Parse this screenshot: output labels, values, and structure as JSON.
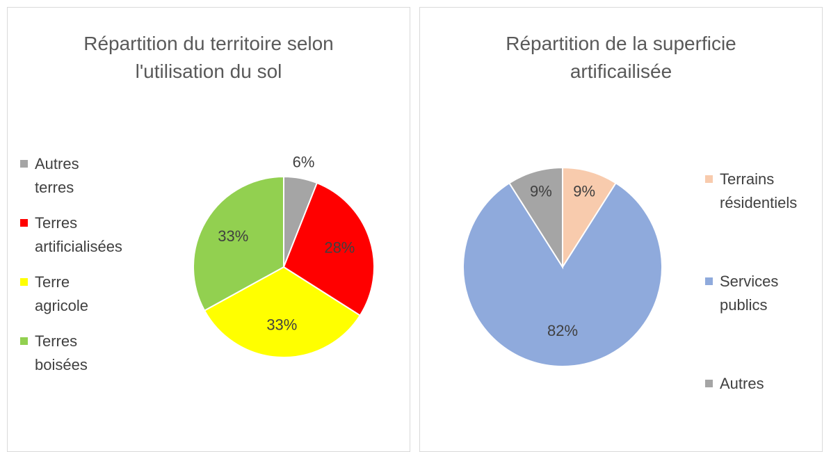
{
  "chart_data": [
    {
      "type": "pie",
      "title": "Répartition du territoire selon l'utilisation du sol",
      "categories": [
        "Autres terres",
        "Terres artificialisées",
        "Terre agricole",
        "Terres boisées"
      ],
      "values": [
        6,
        28,
        33,
        33
      ],
      "value_labels": [
        "6%",
        "28%",
        "33%",
        "33%"
      ],
      "colors": [
        "#a5a5a5",
        "#ff0000",
        "#ffff00",
        "#92d050"
      ],
      "legend": "left"
    },
    {
      "type": "pie",
      "title": "Répartition de la superficie artificailisée",
      "categories": [
        "Terrains résidentiels",
        "Services publics",
        "Autres"
      ],
      "values": [
        9,
        82,
        9
      ],
      "value_labels": [
        "9%",
        "82%",
        "9%"
      ],
      "colors": [
        "#f8cbad",
        "#8faadc",
        "#a5a5a5"
      ],
      "legend": "right"
    }
  ]
}
